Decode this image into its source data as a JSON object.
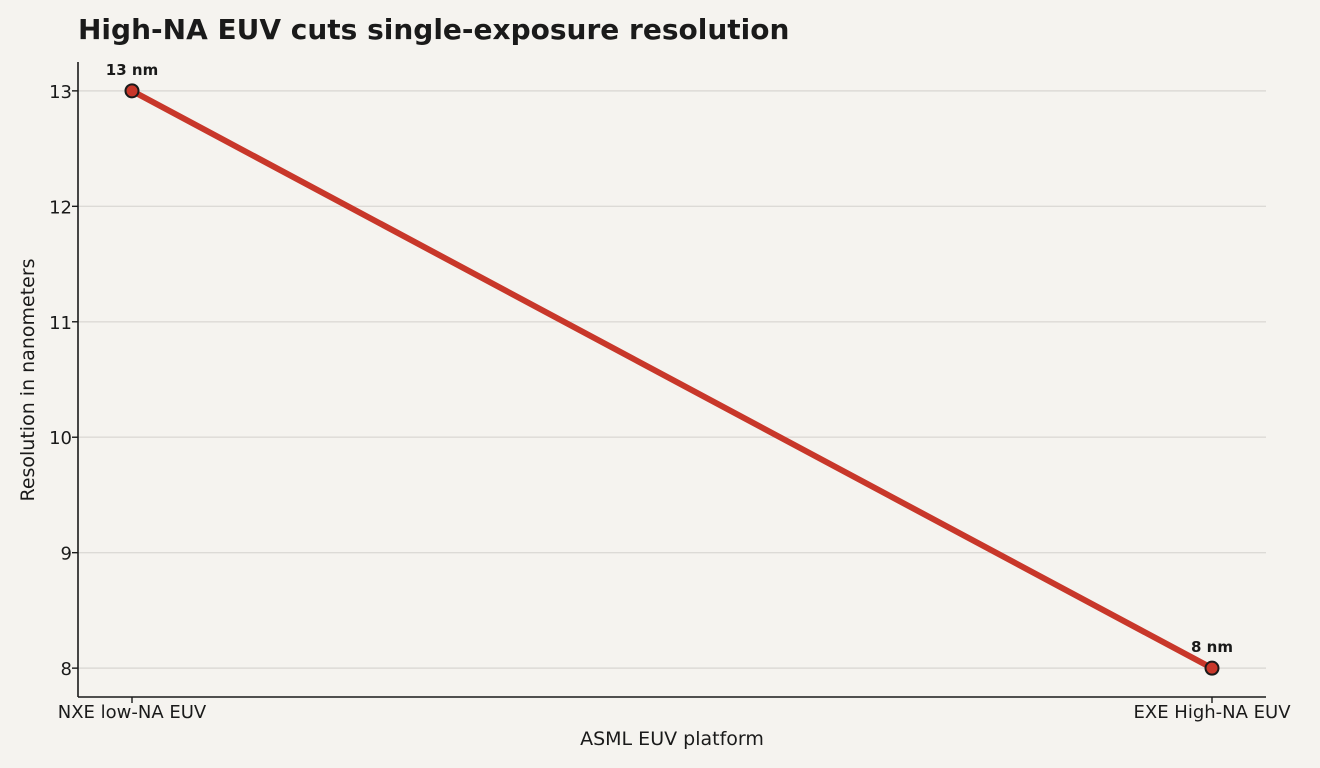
{
  "chart_data": {
    "type": "line",
    "title": "High-NA EUV cuts single-exposure resolution",
    "xlabel": "ASML EUV platform",
    "ylabel": "Resolution in nanometers",
    "categories": [
      "NXE low-NA EUV",
      "EXE High-NA EUV"
    ],
    "series": [
      {
        "values": [
          13,
          8
        ],
        "data_labels": [
          "13 nm",
          "8 nm"
        ]
      }
    ],
    "ylim": [
      7.75,
      13.25
    ],
    "yticks": [
      "8",
      "9",
      "10",
      "11",
      "12",
      "13"
    ],
    "grid": "horizontal",
    "legend": "none",
    "colors": {
      "line": "#c8372a",
      "marker_fill": "#c8372a",
      "marker_edge": "#1a1a1a",
      "grid": "#dcdad6",
      "axis": "#1a1a1a",
      "background": "#f5f3ef"
    }
  }
}
